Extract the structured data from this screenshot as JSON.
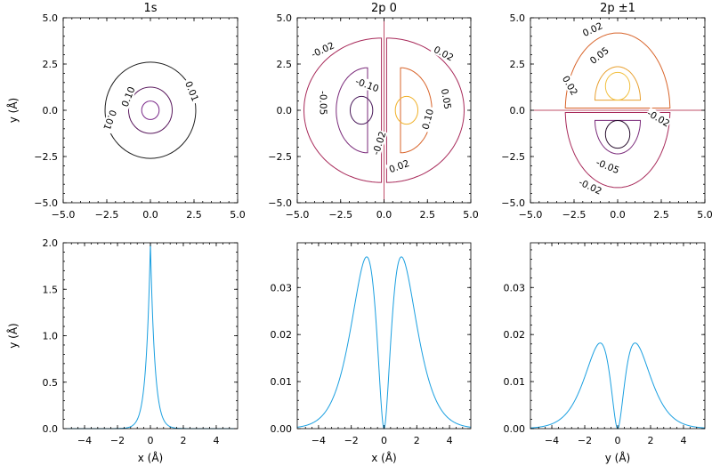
{
  "chart_data": [
    {
      "type": "contour",
      "title": "1s",
      "xlabel": "",
      "ylabel": "y (Å)",
      "xlim": [
        -5,
        5
      ],
      "ylim": [
        -5,
        5
      ],
      "xticks": [
        "−5.0",
        "−2.5",
        "0.0",
        "2.5",
        "5.0"
      ],
      "yticks": [
        "−5.0",
        "−2.5",
        "0.0",
        "2.5",
        "5.0"
      ],
      "contours": [
        {
          "label": "0.01",
          "color": "#1f1f1f",
          "shape": "circle",
          "cx": 0,
          "cy": 0,
          "r": 2.6
        },
        {
          "label": "0.10",
          "color": "#5a1a5e",
          "shape": "circle",
          "cx": 0,
          "cy": 0,
          "r": 1.25
        },
        {
          "label": "",
          "color": "#7b2a8a",
          "shape": "circle",
          "cx": 0,
          "cy": 0,
          "r": 0.5
        }
      ],
      "contour_labels": [
        {
          "text": "0.10",
          "x": -1.2,
          "y": 0.7,
          "rot": -68
        },
        {
          "text": "0.01",
          "x": 2.3,
          "y": 1.0,
          "rot": 68
        },
        {
          "text": "0.01",
          "x": -2.4,
          "y": -0.5,
          "rot": 110
        }
      ]
    },
    {
      "type": "contour",
      "title": "2p 0",
      "xlabel": "",
      "ylabel": "",
      "xlim": [
        -5,
        5
      ],
      "ylim": [
        -5,
        5
      ],
      "xticks": [
        "−5.0",
        "−2.5",
        "0.0",
        "2.5",
        "5.0"
      ],
      "yticks": [
        "−5.0",
        "−2.5",
        "0.0",
        "2.5",
        "5.0"
      ],
      "axis_lines": [
        {
          "orient": "vertical",
          "at": 0,
          "color": "#c0506a"
        }
      ],
      "contours": [
        {
          "label": "-0.02",
          "color": "#a82a5a",
          "shape": "lobe",
          "cx": -2.5,
          "cy": 0,
          "rx": 4.7,
          "ry": 3.9,
          "side": -1
        },
        {
          "label": "-0.05",
          "color": "#7a2a7a",
          "shape": "lobe",
          "cx": -1.9,
          "cy": 0,
          "rx": 1.9,
          "ry": 2.3,
          "side": -1
        },
        {
          "label": "-0.10",
          "color": "#4a1a5a",
          "shape": "ellipse",
          "cx": -1.3,
          "cy": 0,
          "rx": 0.65,
          "ry": 0.75
        },
        {
          "label": "0.02",
          "color": "#a82a5a",
          "shape": "lobe",
          "cx": 2.5,
          "cy": 0,
          "rx": 4.7,
          "ry": 3.9,
          "side": 1
        },
        {
          "label": "0.05",
          "color": "#d8642a",
          "shape": "lobe",
          "cx": 1.9,
          "cy": 0,
          "rx": 1.9,
          "ry": 2.3,
          "side": 1
        },
        {
          "label": "0.10",
          "color": "#f0b12a",
          "shape": "ellipse",
          "cx": 1.3,
          "cy": 0,
          "rx": 0.65,
          "ry": 0.75
        }
      ],
      "contour_labels": [
        {
          "text": "-0.02",
          "x": -3.5,
          "y": 3.2,
          "rot": -25
        },
        {
          "text": "0.02",
          "x": 3.4,
          "y": 3.0,
          "rot": 28
        },
        {
          "text": "-0.10",
          "x": -1.0,
          "y": 1.3,
          "rot": 20
        },
        {
          "text": "-0.05",
          "x": -3.6,
          "y": 0.4,
          "rot": 90
        },
        {
          "text": "0.05",
          "x": 3.5,
          "y": 0.6,
          "rot": 80
        },
        {
          "text": "0.10",
          "x": 2.6,
          "y": -0.5,
          "rot": -75
        },
        {
          "text": "-0.02",
          "x": -0.2,
          "y": -1.8,
          "rot": -72
        },
        {
          "text": "0.02",
          "x": 0.9,
          "y": -3.1,
          "rot": -20
        }
      ]
    },
    {
      "type": "contour",
      "title": "2p ±1",
      "xlabel": "",
      "ylabel": "",
      "xlim": [
        -5,
        5
      ],
      "ylim": [
        -5,
        5
      ],
      "xticks": [
        "−5.0",
        "−2.5",
        "0.0",
        "2.5",
        "5.0"
      ],
      "yticks": [
        "−5.0",
        "−2.5",
        "0.0",
        "2.5",
        "5.0"
      ],
      "axis_lines": [
        {
          "orient": "horizontal",
          "at": 0,
          "color": "#c0506a"
        }
      ],
      "contours": [
        {
          "label": "0.02",
          "color": "#d8642a",
          "shape": "lobe-v",
          "cx": 0,
          "cy": 2.2,
          "rx": 3.0,
          "ry": 4.4,
          "side": 1
        },
        {
          "label": "0.05",
          "color": "#e8a030",
          "shape": "lobe-v",
          "cx": 0,
          "cy": 1.5,
          "rx": 1.3,
          "ry": 1.9,
          "side": 1
        },
        {
          "label": "",
          "color": "#f2c040",
          "shape": "ellipse",
          "cx": 0,
          "cy": 1.3,
          "rx": 0.7,
          "ry": 0.75
        },
        {
          "label": "-0.02",
          "color": "#a82a5a",
          "shape": "lobe-v",
          "cx": 0,
          "cy": -2.2,
          "rx": 3.0,
          "ry": 4.4,
          "side": -1
        },
        {
          "label": "-0.05",
          "color": "#7a2a7a",
          "shape": "lobe-v",
          "cx": 0,
          "cy": -1.5,
          "rx": 1.3,
          "ry": 1.9,
          "side": -1
        },
        {
          "label": "",
          "color": "#2a1030",
          "shape": "ellipse",
          "cx": 0,
          "cy": -1.3,
          "rx": 0.7,
          "ry": 0.75
        }
      ],
      "contour_labels": [
        {
          "text": "0.02",
          "x": -1.4,
          "y": 4.3,
          "rot": -25
        },
        {
          "text": "0.05",
          "x": -1.0,
          "y": 2.9,
          "rot": -38
        },
        {
          "text": "0.02",
          "x": -2.8,
          "y": 1.3,
          "rot": 60
        },
        {
          "text": "-0.02",
          "x": 2.3,
          "y": -0.5,
          "rot": 30
        },
        {
          "text": "-0.05",
          "x": -0.6,
          "y": -3.1,
          "rot": 22
        },
        {
          "text": "-0.02",
          "x": -1.6,
          "y": -4.2,
          "rot": 25
        }
      ]
    },
    {
      "type": "line",
      "title": "",
      "xlabel": "x (Å)",
      "ylabel": "y (Å)",
      "xlim": [
        -5.3,
        5.3
      ],
      "ylim": [
        0,
        2.0
      ],
      "xticks": [
        "−4",
        "−2",
        "0",
        "2",
        "4"
      ],
      "xtick_values": [
        -4,
        -2,
        0,
        2,
        4
      ],
      "yticks": [
        "0.0",
        "0.5",
        "1.0",
        "1.5",
        "2.0"
      ],
      "ytick_values": [
        0,
        0.5,
        1.0,
        1.5,
        2.0
      ],
      "color": "#1a9fe0",
      "series": [
        {
          "name": "1s",
          "function": "2*exp(-2*|x|/0.53)"
        }
      ]
    },
    {
      "type": "line",
      "title": "",
      "xlabel": "x (Å)",
      "ylabel": "",
      "xlim": [
        -5.3,
        5.3
      ],
      "ylim": [
        0,
        0.0395
      ],
      "xticks": [
        "−4",
        "−2",
        "0",
        "2",
        "4"
      ],
      "xtick_values": [
        -4,
        -2,
        0,
        2,
        4
      ],
      "yticks": [
        "0.00",
        "0.01",
        "0.02",
        "0.03"
      ],
      "ytick_values": [
        0,
        0.01,
        0.02,
        0.03
      ],
      "color": "#1a9fe0",
      "series": [
        {
          "name": "2p 0",
          "function": "k*x^2*exp(-|x|/0.53)",
          "peak": 0.0365
        }
      ]
    },
    {
      "type": "line",
      "title": "",
      "xlabel": "y (Å)",
      "ylabel": "",
      "xlim": [
        -5.3,
        5.3
      ],
      "ylim": [
        0,
        0.0395
      ],
      "xticks": [
        "−4",
        "−2",
        "0",
        "2",
        "4"
      ],
      "xtick_values": [
        -4,
        -2,
        0,
        2,
        4
      ],
      "yticks": [
        "0.00",
        "0.01",
        "0.02",
        "0.03"
      ],
      "ytick_values": [
        0,
        0.01,
        0.02,
        0.03
      ],
      "color": "#1a9fe0",
      "series": [
        {
          "name": "2p ±1",
          "function": "k*x^2*exp(-|x|/0.53)",
          "peak": 0.0182
        }
      ]
    }
  ]
}
